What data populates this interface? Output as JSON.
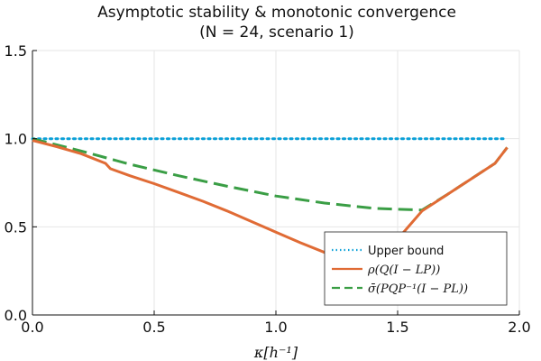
{
  "chart_data": {
    "type": "line",
    "title": "Asymptotic stability & monotonic convergence",
    "subtitle": "(N = 24, scenario 1)",
    "xlabel": "κ[h⁻¹]",
    "ylabel": "",
    "xlim": [
      0,
      2
    ],
    "ylim": [
      0,
      1.5
    ],
    "x_ticks": [
      {
        "value": 0.0,
        "label": "0.0"
      },
      {
        "value": 0.5,
        "label": "0.5"
      },
      {
        "value": 1.0,
        "label": "1.0"
      },
      {
        "value": 1.5,
        "label": "1.5"
      },
      {
        "value": 2.0,
        "label": "2.0"
      }
    ],
    "y_ticks": [
      {
        "value": 0.0,
        "label": "0.0"
      },
      {
        "value": 0.5,
        "label": "0.5"
      },
      {
        "value": 1.0,
        "label": "1.0"
      },
      {
        "value": 1.5,
        "label": "1.5"
      }
    ],
    "grid": true,
    "legend_position": "bottom-right",
    "series": [
      {
        "name": "Upper bound",
        "color": "#0aa0d8",
        "style": "dotted",
        "x": [
          0.0,
          1.95
        ],
        "y": [
          1.0,
          1.0
        ]
      },
      {
        "name": "ρ(Q(I − LP))",
        "color": "#e06b35",
        "style": "solid",
        "x": [
          0.0,
          0.1,
          0.2,
          0.3,
          0.32,
          0.4,
          0.5,
          0.6,
          0.7,
          0.8,
          0.9,
          1.0,
          1.1,
          1.2,
          1.3,
          1.4,
          1.5,
          1.55,
          1.6,
          1.7,
          1.8,
          1.9,
          1.95
        ],
        "y": [
          0.99,
          0.955,
          0.915,
          0.86,
          0.83,
          0.79,
          0.745,
          0.695,
          0.645,
          0.59,
          0.53,
          0.47,
          0.41,
          0.355,
          0.31,
          0.3,
          0.43,
          0.51,
          0.59,
          0.68,
          0.77,
          0.86,
          0.95
        ]
      },
      {
        "name": "σ̄(PQP⁻¹(I − PL))",
        "color": "#3a9e45",
        "style": "dashed",
        "x": [
          0.0,
          0.2,
          0.4,
          0.6,
          0.8,
          1.0,
          1.2,
          1.4,
          1.5,
          1.6,
          1.7,
          1.8,
          1.9,
          1.95
        ],
        "y": [
          1.0,
          0.93,
          0.855,
          0.79,
          0.73,
          0.675,
          0.635,
          0.605,
          0.6,
          0.595,
          0.68,
          0.77,
          0.86,
          0.95
        ]
      }
    ]
  }
}
